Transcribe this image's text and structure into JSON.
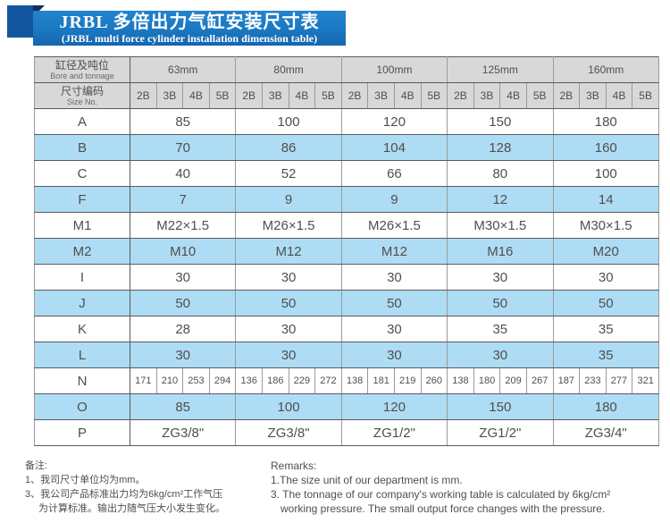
{
  "title": {
    "line1": "JRBL 多倍出力气缸安装尺寸表",
    "line2": "(JRBL multi force cylinder installation dimension table)"
  },
  "table": {
    "corner_bore": {
      "zh": "缸径及吨位",
      "en": "Bore and tonnage"
    },
    "corner_size": {
      "zh": "尺寸编码",
      "en": "Size No."
    },
    "bores": [
      "63mm",
      "80mm",
      "100mm",
      "125mm",
      "160mm"
    ],
    "sub_cols": [
      "2B",
      "3B",
      "4B",
      "5B"
    ],
    "rows": [
      {
        "label": "A",
        "type": "span",
        "values": [
          "85",
          "100",
          "120",
          "150",
          "180"
        ]
      },
      {
        "label": "B",
        "type": "span",
        "values": [
          "70",
          "86",
          "104",
          "128",
          "160"
        ]
      },
      {
        "label": "C",
        "type": "span",
        "values": [
          "40",
          "52",
          "66",
          "80",
          "100"
        ]
      },
      {
        "label": "F",
        "type": "span",
        "values": [
          "7",
          "9",
          "9",
          "12",
          "14"
        ]
      },
      {
        "label": "M1",
        "type": "span",
        "values": [
          "M22×1.5",
          "M26×1.5",
          "M26×1.5",
          "M30×1.5",
          "M30×1.5"
        ]
      },
      {
        "label": "M2",
        "type": "span",
        "values": [
          "M10",
          "M12",
          "M12",
          "M16",
          "M20"
        ]
      },
      {
        "label": "I",
        "type": "span",
        "values": [
          "30",
          "30",
          "30",
          "30",
          "30"
        ]
      },
      {
        "label": "J",
        "type": "span",
        "values": [
          "50",
          "50",
          "50",
          "50",
          "50"
        ]
      },
      {
        "label": "K",
        "type": "span",
        "values": [
          "28",
          "30",
          "30",
          "35",
          "35"
        ]
      },
      {
        "label": "L",
        "type": "span",
        "values": [
          "30",
          "30",
          "30",
          "30",
          "35"
        ]
      },
      {
        "label": "N",
        "type": "cells",
        "values": [
          [
            "171",
            "210",
            "253",
            "294"
          ],
          [
            "136",
            "186",
            "229",
            "272"
          ],
          [
            "138",
            "181",
            "219",
            "260"
          ],
          [
            "138",
            "180",
            "209",
            "267"
          ],
          [
            "187",
            "233",
            "277",
            "321"
          ]
        ]
      },
      {
        "label": "O",
        "type": "span",
        "values": [
          "85",
          "100",
          "120",
          "150",
          "180"
        ]
      },
      {
        "label": "P",
        "type": "span",
        "values": [
          "ZG3/8\"",
          "ZG3/8\"",
          "ZG1/2\"",
          "ZG1/2\"",
          "ZG3/4\""
        ]
      }
    ]
  },
  "remarks_zh": {
    "title": "备注:",
    "lines": [
      "1、我司尺寸单位均为mm。",
      "3、我公司产品标准出力均为6kg/cm²工作气压",
      "为计算标准。输出力随气压大小发生变化。"
    ]
  },
  "remarks_en": {
    "title": "Remarks:",
    "lines": [
      "1.The size unit of our department is mm.",
      "3. The tonnage of our company's working table is calculated by 6kg/cm²",
      "working pressure. The small output force changes with the pressure."
    ]
  },
  "colors": {
    "banner_blue": "#1a78c2",
    "deco_navy": "#1256a0",
    "fold_navy": "#0d2f66",
    "header_gray": "#d8d8d8",
    "stripe_blue": "#aedcf4",
    "text_gray": "#4f4f4f"
  }
}
